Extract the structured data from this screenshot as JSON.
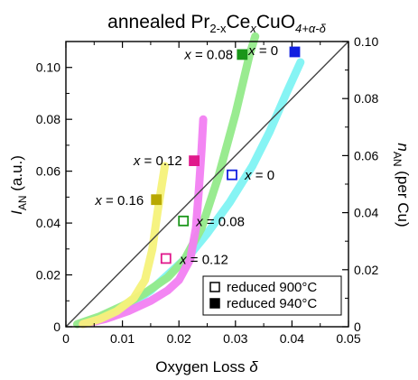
{
  "chart_data": {
    "type": "scatter",
    "title": {
      "prefix": "annealed Pr",
      "sub1": "2-x",
      "middle1": "Ce",
      "sub2": "x",
      "middle2": "CuO",
      "sub3": "4+α-δ"
    },
    "xlabel": {
      "main": "Oxygen Loss ",
      "italic": "δ"
    },
    "ylabel_left": {
      "main": "I",
      "sub": "AN",
      "unit": " (a.u.)"
    },
    "ylabel_right": {
      "main": "n",
      "sub": "AN",
      "unit": " (per Cu)"
    },
    "xlim": [
      0,
      0.05
    ],
    "ylim_left": [
      0,
      0.11
    ],
    "ylim_right": [
      0,
      0.1
    ],
    "x_ticks": [
      "0",
      "0.01",
      "0.02",
      "0.03",
      "0.04",
      "0.05"
    ],
    "y_left_ticks": [
      "0",
      "0.02",
      "0.04",
      "0.06",
      "0.08",
      "0.10"
    ],
    "y_right_ticks": [
      "0",
      "0.02",
      "0.04",
      "0.06",
      "0.08",
      "0.10"
    ],
    "grid": false,
    "legend_position": "bottom-right",
    "legend": [
      {
        "label": "reduced 900°C",
        "filled": false
      },
      {
        "label": "reduced 940°C",
        "filled": true
      }
    ],
    "diagonal_line": {
      "from": [
        0,
        0
      ],
      "to": [
        0.05,
        0.1
      ],
      "axis": "right"
    },
    "series": [
      {
        "x_label": "0",
        "color": "#7ff3f3",
        "marker_color": "#1020e0",
        "curve": [
          [
            0.003,
            0.0015
          ],
          [
            0.007,
            0.004
          ],
          [
            0.011,
            0.008
          ],
          [
            0.015,
            0.014
          ],
          [
            0.019,
            0.022
          ],
          [
            0.022,
            0.028
          ],
          [
            0.025,
            0.036
          ],
          [
            0.029,
            0.048
          ],
          [
            0.033,
            0.062
          ],
          [
            0.036,
            0.075
          ],
          [
            0.039,
            0.09
          ],
          [
            0.0415,
            0.102
          ]
        ],
        "points": [
          {
            "x": 0.0294,
            "y": 0.0586,
            "filled": false
          },
          {
            "x": 0.0405,
            "y": 0.106,
            "filled": true
          }
        ]
      },
      {
        "x_label": "0.08",
        "color": "#93ea8a",
        "marker_color": "#1a961a",
        "curve": [
          [
            0.002,
            0.001
          ],
          [
            0.006,
            0.004
          ],
          [
            0.01,
            0.008
          ],
          [
            0.014,
            0.013
          ],
          [
            0.018,
            0.019
          ],
          [
            0.021,
            0.026
          ],
          [
            0.024,
            0.038
          ],
          [
            0.027,
            0.058
          ],
          [
            0.03,
            0.082
          ],
          [
            0.0325,
            0.105
          ],
          [
            0.0335,
            0.112
          ]
        ],
        "points": [
          {
            "x": 0.0208,
            "y": 0.0408,
            "filled": false
          },
          {
            "x": 0.0312,
            "y": 0.105,
            "filled": true
          }
        ]
      },
      {
        "x_label": "0.12",
        "color": "#f27ff2",
        "marker_color": "#e0188c",
        "curve": [
          [
            0.003,
            0.001
          ],
          [
            0.007,
            0.003
          ],
          [
            0.011,
            0.006
          ],
          [
            0.015,
            0.01
          ],
          [
            0.018,
            0.014
          ],
          [
            0.02,
            0.018
          ],
          [
            0.022,
            0.026
          ],
          [
            0.023,
            0.038
          ],
          [
            0.0235,
            0.052
          ],
          [
            0.024,
            0.068
          ],
          [
            0.0243,
            0.08
          ]
        ],
        "points": [
          {
            "x": 0.0177,
            "y": 0.0263,
            "filled": false
          },
          {
            "x": 0.0227,
            "y": 0.064,
            "filled": true
          }
        ]
      },
      {
        "x_label": "0.16",
        "color": "#f6f27a",
        "marker_color": "#b8a800",
        "curve": [
          [
            0.003,
            0.001
          ],
          [
            0.006,
            0.003
          ],
          [
            0.009,
            0.006
          ],
          [
            0.012,
            0.011
          ],
          [
            0.014,
            0.018
          ],
          [
            0.0153,
            0.03
          ],
          [
            0.0162,
            0.044
          ],
          [
            0.017,
            0.055
          ],
          [
            0.0175,
            0.062
          ]
        ],
        "points": [
          {
            "x": 0.016,
            "y": 0.049,
            "filled": true
          }
        ]
      }
    ],
    "annotations": [
      {
        "var": "x",
        "text": " = 0.08",
        "x": 0.031,
        "y": 0.105,
        "anchor": "end"
      },
      {
        "var": "x",
        "text": " = 0",
        "x": 0.039,
        "y": 0.1065,
        "anchor": "end"
      },
      {
        "var": "x",
        "text": " = 0.12",
        "x": 0.022,
        "y": 0.064,
        "anchor": "end"
      },
      {
        "var": "x",
        "text": " = 0",
        "x": 0.0302,
        "y": 0.0585,
        "anchor": "start"
      },
      {
        "var": "x",
        "text": " = 0.16",
        "x": 0.0152,
        "y": 0.0488,
        "anchor": "end"
      },
      {
        "var": "x",
        "text": " = 0.08",
        "x": 0.0216,
        "y": 0.0405,
        "anchor": "start"
      },
      {
        "var": "x",
        "text": " = 0.12",
        "x": 0.0187,
        "y": 0.026,
        "anchor": "start"
      }
    ]
  }
}
